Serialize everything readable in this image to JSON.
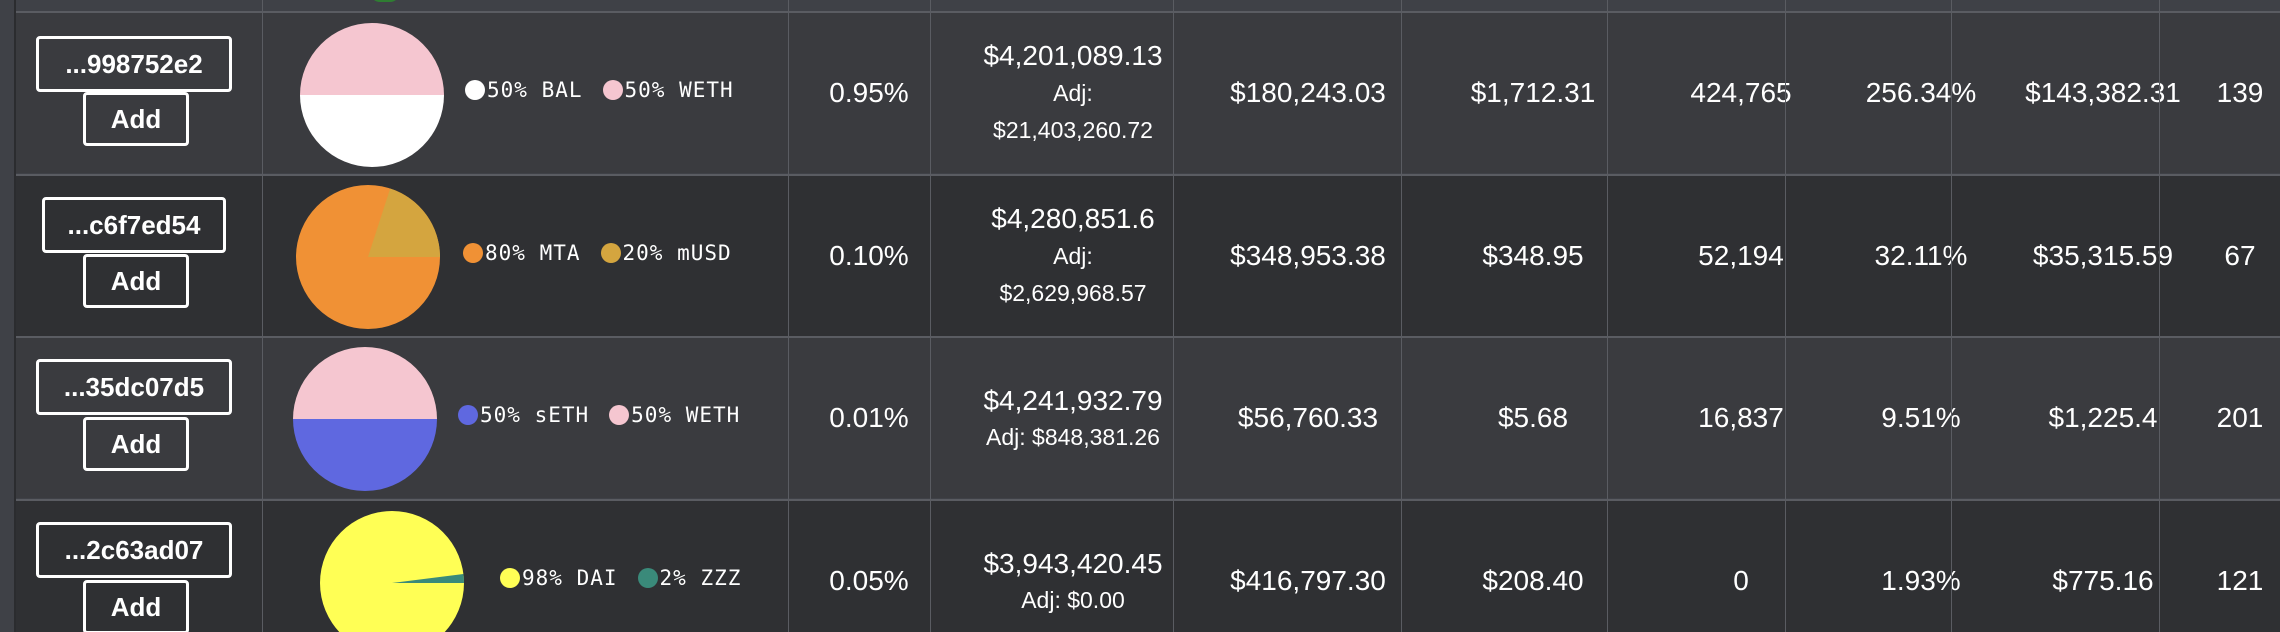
{
  "rows": [
    {
      "address": "...998752e2",
      "add_label": "Add",
      "pie": {
        "slices": [
          {
            "pct": 50,
            "color": "#f5c6d0"
          },
          {
            "pct": 50,
            "color": "#ffffff"
          }
        ],
        "split": "horizontal"
      },
      "legend": [
        {
          "label": "50% BAL",
          "color": "#ffffff"
        },
        {
          "label": "50% WETH",
          "color": "#f5c6d0"
        }
      ],
      "fee": "0.95%",
      "tvl": "$4,201,089.13",
      "adj_label": "Adj:",
      "adj_value": "$21,403,260.72",
      "volume": "$180,243.03",
      "fees_usd": "$1,712.31",
      "tokens": "424,765",
      "apy": "256.34%",
      "rewards": "$143,382.31",
      "holders": "139"
    },
    {
      "address": "...c6f7ed54",
      "add_label": "Add",
      "pie": {
        "slices": [
          {
            "pct": 80,
            "color": "#f09135"
          },
          {
            "pct": 20,
            "color": "#d4a53f"
          }
        ]
      },
      "legend": [
        {
          "label": "80% MTA",
          "color": "#f09135"
        },
        {
          "label": "20% mUSD",
          "color": "#d4a53f"
        }
      ],
      "fee": "0.10%",
      "tvl": "$4,280,851.6",
      "adj_label": "Adj:",
      "adj_value": "$2,629,968.57",
      "volume": "$348,953.38",
      "fees_usd": "$348.95",
      "tokens": "52,194",
      "apy": "32.11%",
      "rewards": "$35,315.59",
      "holders": "67"
    },
    {
      "address": "...35dc07d5",
      "add_label": "Add",
      "pie": {
        "slices": [
          {
            "pct": 50,
            "color": "#f5c6d0"
          },
          {
            "pct": 50,
            "color": "#5f68e0"
          }
        ],
        "split": "horizontal"
      },
      "legend": [
        {
          "label": "50% sETH",
          "color": "#5f68e0"
        },
        {
          "label": "50% WETH",
          "color": "#f5c6d0"
        }
      ],
      "fee": "0.01%",
      "tvl": "$4,241,932.79",
      "adj_inline": "Adj: $848,381.26",
      "volume": "$56,760.33",
      "fees_usd": "$5.68",
      "tokens": "16,837",
      "apy": "9.51%",
      "rewards": "$1,225.4",
      "holders": "201"
    },
    {
      "address": "...2c63ad07",
      "add_label": "Add",
      "pie": {
        "slices": [
          {
            "pct": 98,
            "color": "#ffff55"
          },
          {
            "pct": 2,
            "color": "#3a8a7a"
          }
        ]
      },
      "legend": [
        {
          "label": "98% DAI",
          "color": "#ffff55"
        },
        {
          "label": "2% ZZZ",
          "color": "#3a8a7a"
        }
      ],
      "fee": "0.05%",
      "tvl": "$3,943,420.45",
      "adj_inline": "Adj: $0.00",
      "volume": "$416,797.30",
      "fees_usd": "$208.40",
      "tokens": "0",
      "apy": "1.93%",
      "rewards": "$775.16",
      "holders": "121"
    }
  ]
}
